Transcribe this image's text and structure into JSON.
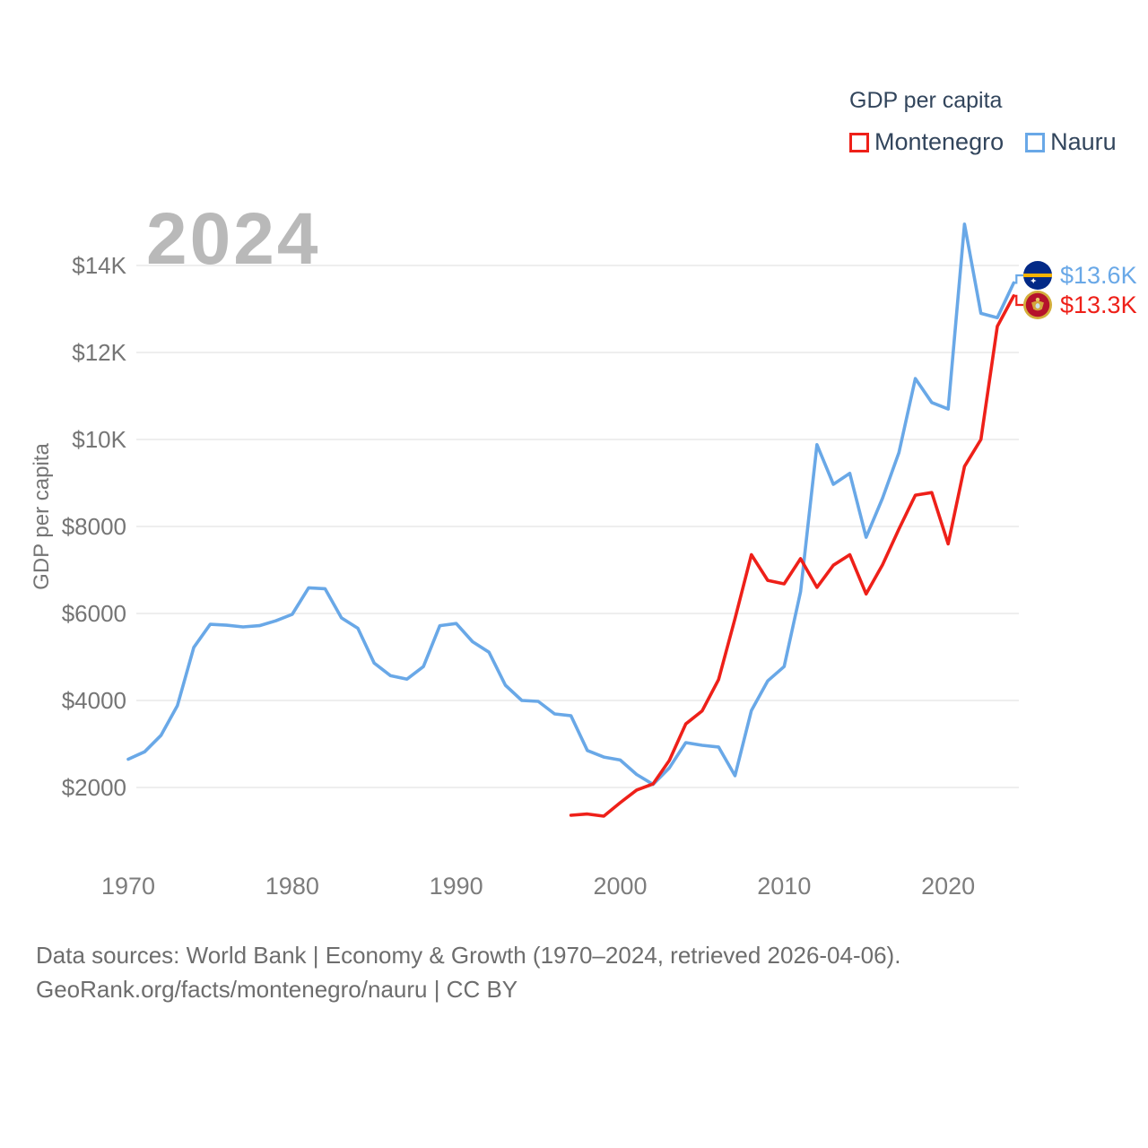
{
  "legend": {
    "title": "GDP per capita",
    "items": [
      {
        "label": "Montenegro",
        "color": "#ee2019"
      },
      {
        "label": "Nauru",
        "color": "#69a8e7"
      }
    ]
  },
  "watermark": "2024",
  "chart_data": {
    "type": "line",
    "title": "GDP per capita",
    "ylabel": "GDP per capita",
    "xlabel": "",
    "grid": true,
    "legend_position": "top-right",
    "x_range": [
      1970,
      2024
    ],
    "ylim": [
      1000,
      15000
    ],
    "y_ticks": [
      {
        "value": 2000,
        "label": "$2000"
      },
      {
        "value": 4000,
        "label": "$4000"
      },
      {
        "value": 6000,
        "label": "$6000"
      },
      {
        "value": 8000,
        "label": "$8000"
      },
      {
        "value": 10000,
        "label": "$10K"
      },
      {
        "value": 12000,
        "label": "$12K"
      },
      {
        "value": 14000,
        "label": "$14K"
      }
    ],
    "x_ticks": [
      1970,
      1980,
      1990,
      2000,
      2010,
      2020
    ],
    "series": [
      {
        "name": "Nauru",
        "color": "#69a8e7",
        "points": [
          [
            1970,
            2650
          ],
          [
            1971,
            2820
          ],
          [
            1972,
            3200
          ],
          [
            1973,
            3880
          ],
          [
            1974,
            5220
          ],
          [
            1975,
            5750
          ],
          [
            1976,
            5730
          ],
          [
            1977,
            5690
          ],
          [
            1978,
            5720
          ],
          [
            1979,
            5830
          ],
          [
            1980,
            5980
          ],
          [
            1981,
            6590
          ],
          [
            1982,
            6570
          ],
          [
            1983,
            5900
          ],
          [
            1984,
            5660
          ],
          [
            1985,
            4860
          ],
          [
            1986,
            4570
          ],
          [
            1987,
            4490
          ],
          [
            1988,
            4780
          ],
          [
            1989,
            5720
          ],
          [
            1990,
            5770
          ],
          [
            1991,
            5350
          ],
          [
            1992,
            5110
          ],
          [
            1993,
            4350
          ],
          [
            1994,
            4000
          ],
          [
            1995,
            3980
          ],
          [
            1996,
            3690
          ],
          [
            1997,
            3650
          ],
          [
            1998,
            2850
          ],
          [
            1999,
            2700
          ],
          [
            2000,
            2630
          ],
          [
            2001,
            2300
          ],
          [
            2002,
            2070
          ],
          [
            2003,
            2450
          ],
          [
            2004,
            3030
          ],
          [
            2005,
            2970
          ],
          [
            2006,
            2930
          ],
          [
            2007,
            2270
          ],
          [
            2008,
            3770
          ],
          [
            2009,
            4450
          ],
          [
            2010,
            4780
          ],
          [
            2011,
            6500
          ],
          [
            2012,
            9880
          ],
          [
            2013,
            8970
          ],
          [
            2014,
            9220
          ],
          [
            2015,
            7750
          ],
          [
            2016,
            8650
          ],
          [
            2017,
            9700
          ],
          [
            2018,
            11400
          ],
          [
            2019,
            10850
          ],
          [
            2020,
            10700
          ],
          [
            2021,
            14950
          ],
          [
            2022,
            12900
          ],
          [
            2023,
            12800
          ],
          [
            2024,
            13600
          ]
        ]
      },
      {
        "name": "Montenegro",
        "color": "#ee2019",
        "points": [
          [
            1997,
            1360
          ],
          [
            1998,
            1390
          ],
          [
            1999,
            1340
          ],
          [
            2000,
            1650
          ],
          [
            2001,
            1940
          ],
          [
            2002,
            2080
          ],
          [
            2003,
            2620
          ],
          [
            2004,
            3460
          ],
          [
            2005,
            3760
          ],
          [
            2006,
            4480
          ],
          [
            2007,
            5880
          ],
          [
            2008,
            7350
          ],
          [
            2009,
            6760
          ],
          [
            2010,
            6680
          ],
          [
            2011,
            7260
          ],
          [
            2012,
            6600
          ],
          [
            2013,
            7110
          ],
          [
            2014,
            7350
          ],
          [
            2015,
            6450
          ],
          [
            2016,
            7120
          ],
          [
            2017,
            7940
          ],
          [
            2018,
            8720
          ],
          [
            2019,
            8780
          ],
          [
            2020,
            7600
          ],
          [
            2021,
            9380
          ],
          [
            2022,
            10000
          ],
          [
            2023,
            12600
          ],
          [
            2024,
            13300
          ]
        ]
      }
    ],
    "end_labels": [
      {
        "series": "Nauru",
        "label": "$13.6K"
      },
      {
        "series": "Montenegro",
        "label": "$13.3K"
      }
    ]
  },
  "annotations": {
    "nauru_value": "$13.6K",
    "montenegro_value": "$13.3K"
  },
  "footer": {
    "line1": "Data sources: World Bank | Economy & Growth (1970–2024, retrieved 2026-04-06).",
    "line2": "GeoRank.org/facts/montenegro/nauru | CC BY"
  }
}
